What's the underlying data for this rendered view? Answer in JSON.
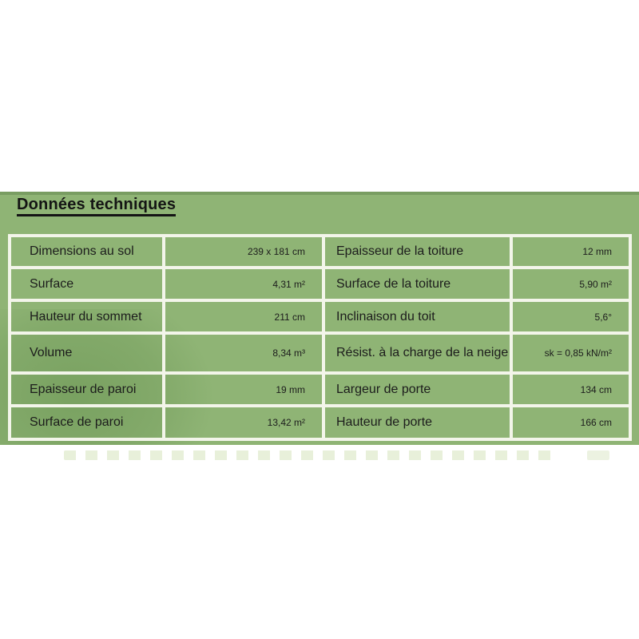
{
  "panel": {
    "title": "Données techniques",
    "colors": {
      "background_green": "#8fb475",
      "grid_border": "#f3f5ea",
      "text": "#1c1c1c"
    },
    "table": {
      "rows": [
        {
          "c0": "Dimensions au sol",
          "c1": "239 x 181 cm",
          "c2": "Epaisseur de la toiture",
          "c3": "12 mm"
        },
        {
          "c0": "Surface",
          "c1": "4,31 m²",
          "c2": "Surface de la toiture",
          "c3": "5,90 m²"
        },
        {
          "c0": "Hauteur du sommet",
          "c1": "211 cm",
          "c2": "Inclinaison du toit",
          "c3": "5,6°"
        },
        {
          "c0": "Volume",
          "c1": "8,34 m³",
          "c2": "Résist. à la charge de la neige",
          "c3": "sk = 0,85 kN/m²"
        },
        {
          "c0": "Epaisseur de paroi",
          "c1": "19 mm",
          "c2": "Largeur de porte",
          "c3": "134 cm"
        },
        {
          "c0": "Surface de paroi",
          "c1": "13,42 m²",
          "c2": "Hauteur de porte",
          "c3": "166 cm"
        }
      ]
    }
  }
}
